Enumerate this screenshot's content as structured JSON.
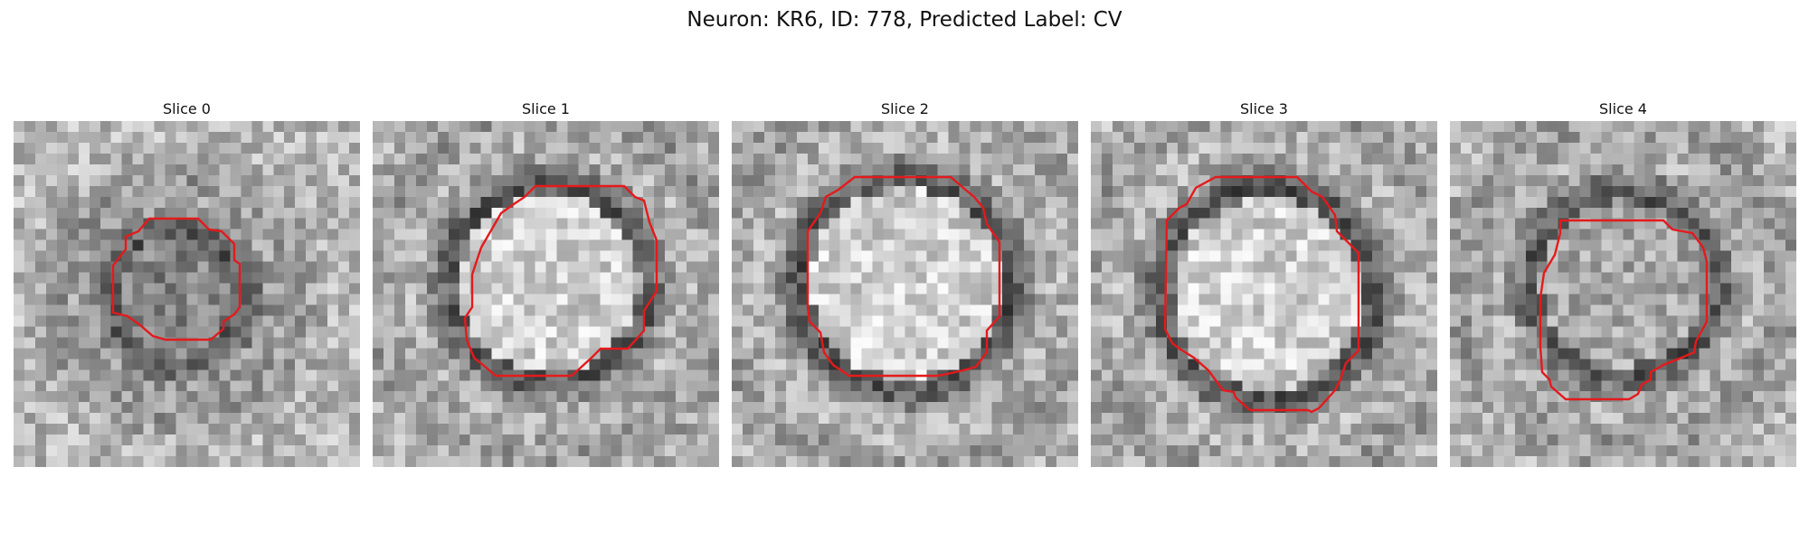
{
  "figure": {
    "title": "Neuron: KR6, ID: 778, Predicted Label: CV"
  },
  "panels": [
    {
      "label": "Slice 0",
      "structure": "dark-ring-dark-center",
      "contour_color": "#e41a1c",
      "radius_fraction": 0.18
    },
    {
      "label": "Slice 1",
      "structure": "dark-ring-bright-center",
      "contour_color": "#e41a1c",
      "radius_fraction": 0.27
    },
    {
      "label": "Slice 2",
      "structure": "dark-ring-bright-center",
      "contour_color": "#e41a1c",
      "radius_fraction": 0.29
    },
    {
      "label": "Slice 3",
      "structure": "dark-ring-bright-center",
      "contour_color": "#e41a1c",
      "radius_fraction": 0.29
    },
    {
      "label": "Slice 4",
      "structure": "dark-ring-mixed-center",
      "contour_color": "#e41a1c",
      "radius_fraction": 0.25
    }
  ],
  "colormap": "grayscale"
}
